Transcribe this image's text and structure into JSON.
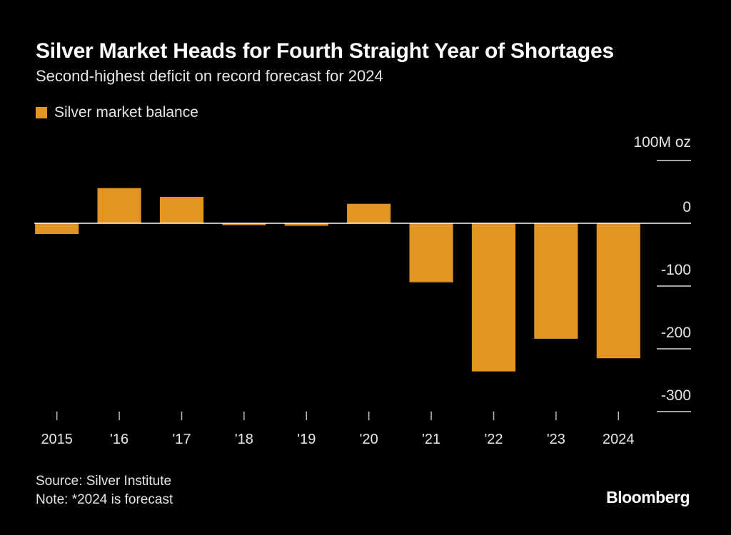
{
  "header": {
    "title": "Silver Market Heads for Fourth Straight Year of Shortages",
    "subtitle": "Second-highest deficit on record forecast for 2024"
  },
  "footer": {
    "source": "Source: Silver Institute",
    "note": "Note: *2024 is forecast",
    "brand": "Bloomberg"
  },
  "colors": {
    "bar": "#e39524",
    "background": "#000000",
    "text": "#e6e6e6",
    "zero_line": "#ffffff"
  },
  "chart_data": {
    "type": "bar",
    "categories": [
      "2015",
      "'16",
      "'17",
      "'18",
      "'19",
      "'20",
      "'21",
      "'22",
      "'23",
      "2024"
    ],
    "series": [
      {
        "name": "Silver market balance",
        "values": [
          -17,
          56,
          42,
          -3,
          -4,
          31,
          -94,
          -236,
          -184,
          -215
        ]
      }
    ],
    "unit_label": "100M oz",
    "yticks": [
      100,
      0,
      -100,
      -200,
      -300
    ],
    "ytick_labels": [
      "",
      "0",
      "-100",
      "-200",
      "-300"
    ],
    "ylim": [
      -300,
      100
    ],
    "legend_position": "top-left",
    "grid": false
  }
}
